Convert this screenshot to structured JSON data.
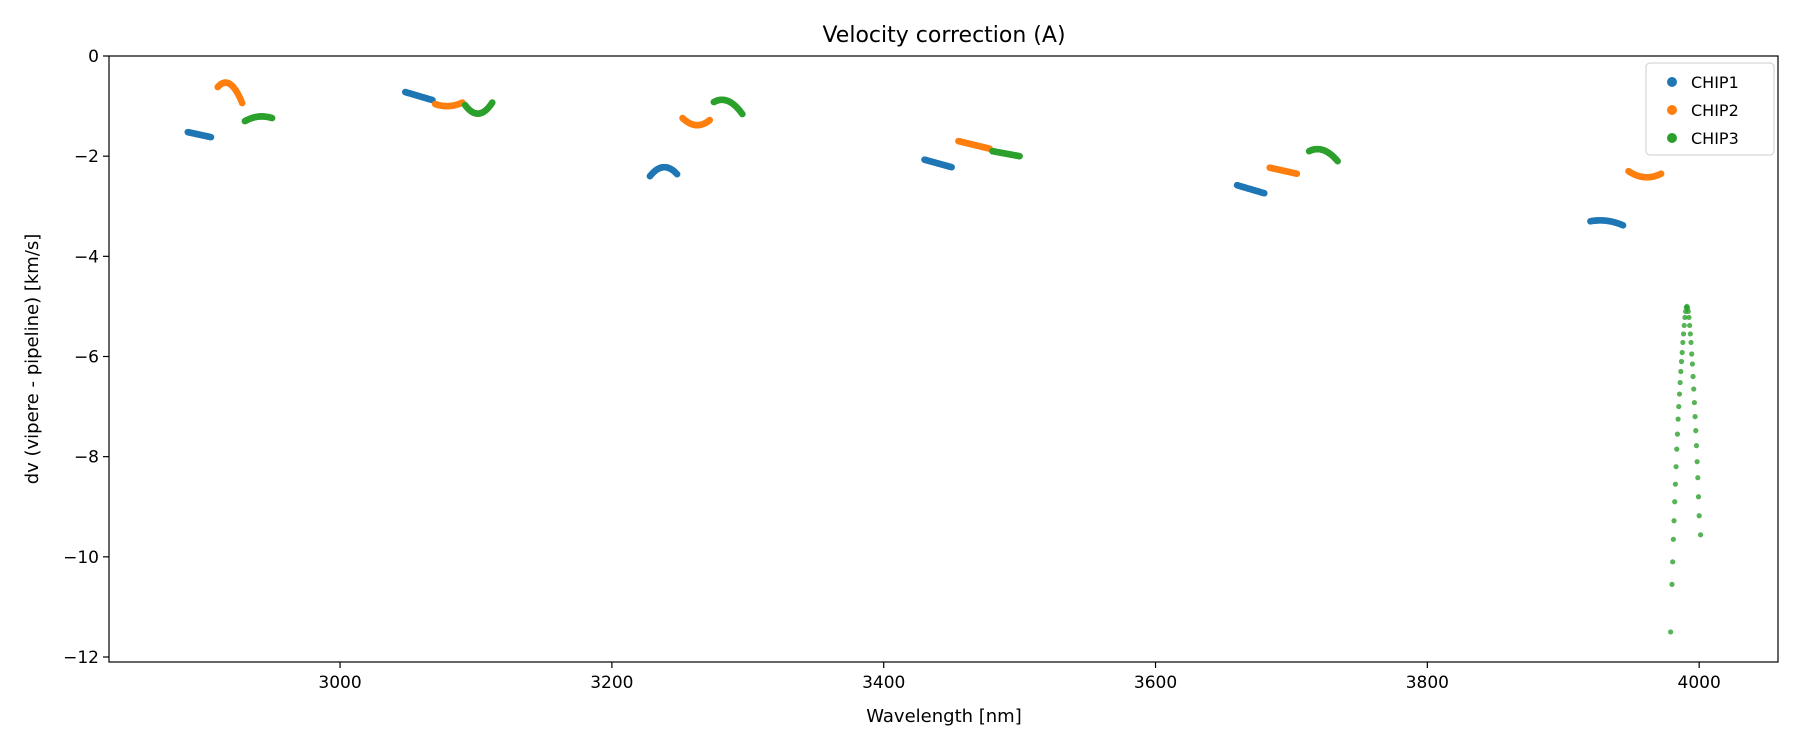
{
  "chart_data": {
    "type": "scatter",
    "title": "Velocity correction (A)",
    "xlabel": "Wavelength [nm]",
    "ylabel": "dv (vipere - pipeline) [km/s]",
    "xlim": [
      2830,
      4058
    ],
    "ylim": [
      -12.1,
      0
    ],
    "xticks": [
      3000,
      3200,
      3400,
      3600,
      3800,
      4000
    ],
    "yticks": [
      0,
      -2,
      -4,
      -6,
      -8,
      -10,
      -12
    ],
    "legend_position": "top-right",
    "series": [
      {
        "name": "CHIP1",
        "color": "#1f77b4",
        "segments": [
          {
            "type": "linear",
            "x0": 2888,
            "x1": 2905,
            "y0": -1.52,
            "y1": -1.62
          },
          {
            "type": "linear",
            "x0": 3048,
            "x1": 3068,
            "y0": -0.72,
            "y1": -0.88
          },
          {
            "type": "arch",
            "x0": 3228,
            "x1": 3248,
            "yEnd0": -2.4,
            "yEnd1": -2.36,
            "yPeak": -2.22
          },
          {
            "type": "linear",
            "x0": 3430,
            "x1": 3450,
            "y0": -2.07,
            "y1": -2.22
          },
          {
            "type": "linear",
            "x0": 3660,
            "x1": 3680,
            "y0": -2.58,
            "y1": -2.74
          },
          {
            "type": "arch",
            "x0": 3920,
            "x1": 3944,
            "yEnd0": -3.3,
            "yEnd1": -3.38,
            "yPeak": -3.29
          }
        ]
      },
      {
        "name": "CHIP2",
        "color": "#ff7f0e",
        "segments": [
          {
            "type": "arch",
            "x0": 2910,
            "x1": 2928,
            "yEnd0": -0.62,
            "yEnd1": -0.94,
            "yPeak": -0.56
          },
          {
            "type": "bowl",
            "x0": 3070,
            "x1": 3090,
            "yEnd0": -0.96,
            "yEnd1": -0.93,
            "yMin": -1.0
          },
          {
            "type": "bowl",
            "x0": 3252,
            "x1": 3272,
            "yEnd0": -1.24,
            "yEnd1": -1.28,
            "yMin": -1.38
          },
          {
            "type": "linear",
            "x0": 3455,
            "x1": 3478,
            "y0": -1.7,
            "y1": -1.85
          },
          {
            "type": "linear",
            "x0": 3684,
            "x1": 3704,
            "y0": -2.23,
            "y1": -2.35
          },
          {
            "type": "bowl",
            "x0": 3948,
            "x1": 3972,
            "yEnd0": -2.3,
            "yEnd1": -2.35,
            "yMin": -2.42
          }
        ]
      },
      {
        "name": "CHIP3",
        "color": "#2ca02c",
        "segments": [
          {
            "type": "arch",
            "x0": 2930,
            "x1": 2950,
            "yEnd0": -1.3,
            "yEnd1": -1.24,
            "yPeak": -1.21
          },
          {
            "type": "bowl",
            "x0": 3092,
            "x1": 3112,
            "yEnd0": -0.98,
            "yEnd1": -0.93,
            "yMin": -1.15
          },
          {
            "type": "arch",
            "x0": 3275,
            "x1": 3296,
            "yEnd0": -0.92,
            "yEnd1": -1.16,
            "yPeak": -0.9
          },
          {
            "type": "linear",
            "x0": 3480,
            "x1": 3500,
            "y0": -1.9,
            "y1": -2.0
          },
          {
            "type": "arch",
            "x0": 3713,
            "x1": 3734,
            "yEnd0": -1.9,
            "yEnd1": -2.1,
            "yPeak": -1.88
          },
          {
            "type": "sparse",
            "points": [
              [
                3979,
                -11.5
              ],
              [
                3980,
                -10.55
              ],
              [
                3980.5,
                -10.1
              ],
              [
                3981,
                -9.65
              ],
              [
                3981.5,
                -9.28
              ],
              [
                3982,
                -8.9
              ],
              [
                3982.5,
                -8.55
              ],
              [
                3983,
                -8.2
              ],
              [
                3983.5,
                -7.85
              ],
              [
                3984,
                -7.55
              ],
              [
                3984.5,
                -7.25
              ],
              [
                3985,
                -7.0
              ],
              [
                3985.5,
                -6.75
              ],
              [
                3986,
                -6.52
              ],
              [
                3986.5,
                -6.3
              ],
              [
                3987,
                -6.1
              ],
              [
                3987.5,
                -5.92
              ],
              [
                3988,
                -5.72
              ],
              [
                3988.5,
                -5.55
              ],
              [
                3989,
                -5.38
              ],
              [
                3989.5,
                -5.22
              ],
              [
                3990,
                -5.1
              ],
              [
                3990.5,
                -5.02
              ],
              [
                3991,
                -5.0
              ],
              [
                3991.5,
                -5.03
              ],
              [
                3992,
                -5.1
              ],
              [
                3992.5,
                -5.22
              ],
              [
                3993,
                -5.38
              ],
              [
                3993.5,
                -5.55
              ],
              [
                3994,
                -5.72
              ],
              [
                3994.5,
                -5.95
              ],
              [
                3995,
                -6.15
              ],
              [
                3995.5,
                -6.4
              ],
              [
                3996,
                -6.65
              ],
              [
                3996.5,
                -6.92
              ],
              [
                3997,
                -7.2
              ],
              [
                3997.5,
                -7.48
              ],
              [
                3998,
                -7.78
              ],
              [
                3998.5,
                -8.1
              ],
              [
                3999,
                -8.42
              ],
              [
                3999.5,
                -8.8
              ],
              [
                4000,
                -9.18
              ],
              [
                4001,
                -9.56
              ]
            ]
          }
        ]
      }
    ]
  }
}
